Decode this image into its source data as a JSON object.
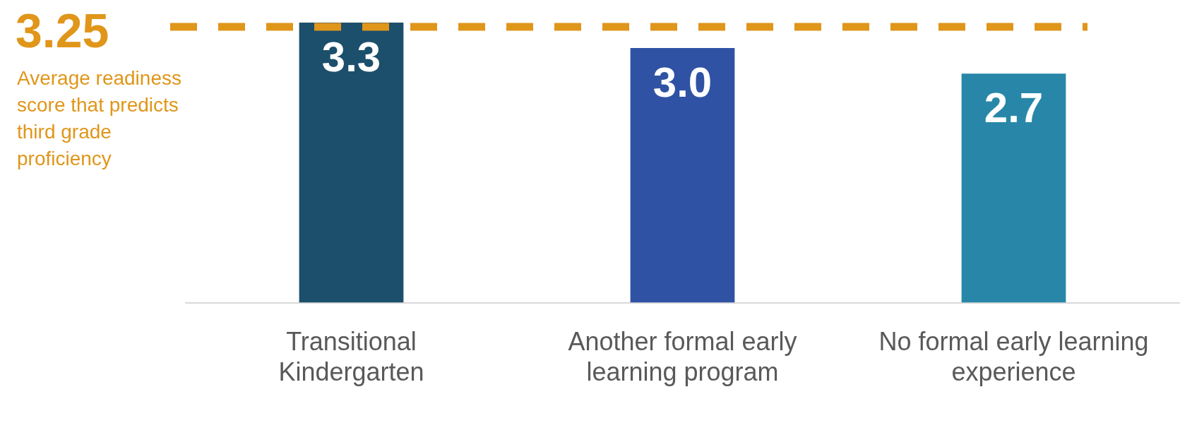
{
  "chart_data": {
    "type": "bar",
    "categories": [
      "Transitional Kindergarten",
      "Another formal early learning program",
      "No formal early learning experience"
    ],
    "values": [
      3.3,
      3.0,
      2.7
    ],
    "colors": [
      "#1c4f6b",
      "#2f52a4",
      "#2887a8"
    ],
    "value_labels": [
      "3.3",
      "3.0",
      "2.7"
    ],
    "tick_labels": "x",
    "grid": false,
    "legend": false,
    "ref_lines": [
      {
        "axis": "y",
        "value": 3.25,
        "label": "3.25",
        "color": "#e0961a",
        "line_style": "dashed"
      }
    ],
    "annotations": [
      "Average readiness score that predicts third grade proficiency"
    ]
  }
}
